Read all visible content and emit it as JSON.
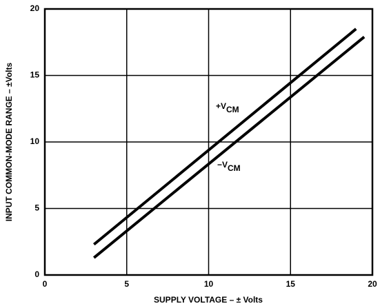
{
  "chart_data": {
    "type": "line",
    "xlabel": "SUPPLY VOLTAGE – ± Volts",
    "ylabel": "INPUT COMMON-MODE RANGE – ±Volts",
    "series": [
      {
        "name": "+V",
        "name_sub": "CM",
        "color": "#000000",
        "x": [
          3,
          19
        ],
        "values": [
          2.3,
          18.5
        ]
      },
      {
        "name": "−V",
        "name_sub": "CM",
        "color": "#000000",
        "x": [
          3,
          19.5
        ],
        "values": [
          1.3,
          17.9
        ]
      }
    ],
    "xlim": [
      0,
      20
    ],
    "xticks": [
      0,
      5,
      10,
      15,
      20
    ],
    "ylim": [
      0,
      20
    ],
    "yticks": [
      0,
      5,
      10,
      15,
      20
    ],
    "grid": true
  }
}
